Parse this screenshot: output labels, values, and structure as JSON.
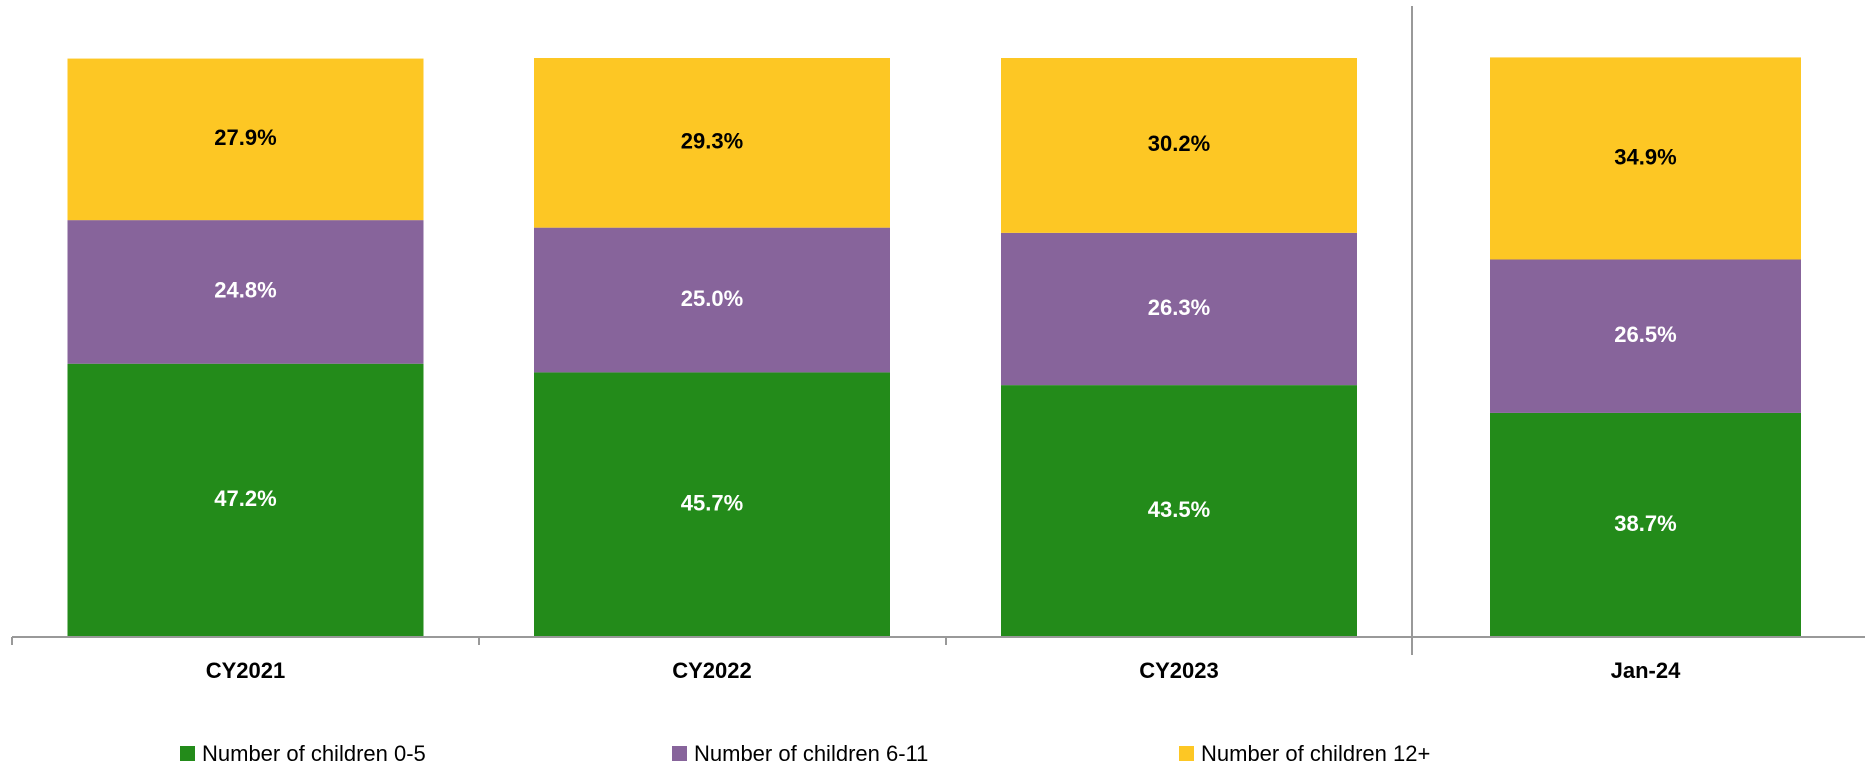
{
  "chart_data": {
    "type": "stacked_bar",
    "categories": [
      "CY2021",
      "CY2022",
      "CY2023",
      "Jan-24"
    ],
    "ylim": [
      0,
      100
    ],
    "series": [
      {
        "name": "Number of children 0-5",
        "color": "#238b1a",
        "values": [
          47.2,
          45.7,
          43.5,
          38.7
        ],
        "value_labels": [
          "47.2%",
          "45.7%",
          "43.5%",
          "38.7%"
        ]
      },
      {
        "name": "Number of children 6-11",
        "color": "#87649b",
        "values": [
          24.8,
          25.0,
          26.3,
          26.5
        ],
        "value_labels": [
          "24.8%",
          "25.0%",
          "26.3%",
          "26.5%"
        ]
      },
      {
        "name": "Number of children 12+",
        "color": "#fdc724",
        "values": [
          27.9,
          29.3,
          30.2,
          34.9
        ],
        "value_labels": [
          "27.9%",
          "29.3%",
          "30.2%",
          "34.9%"
        ]
      }
    ]
  }
}
